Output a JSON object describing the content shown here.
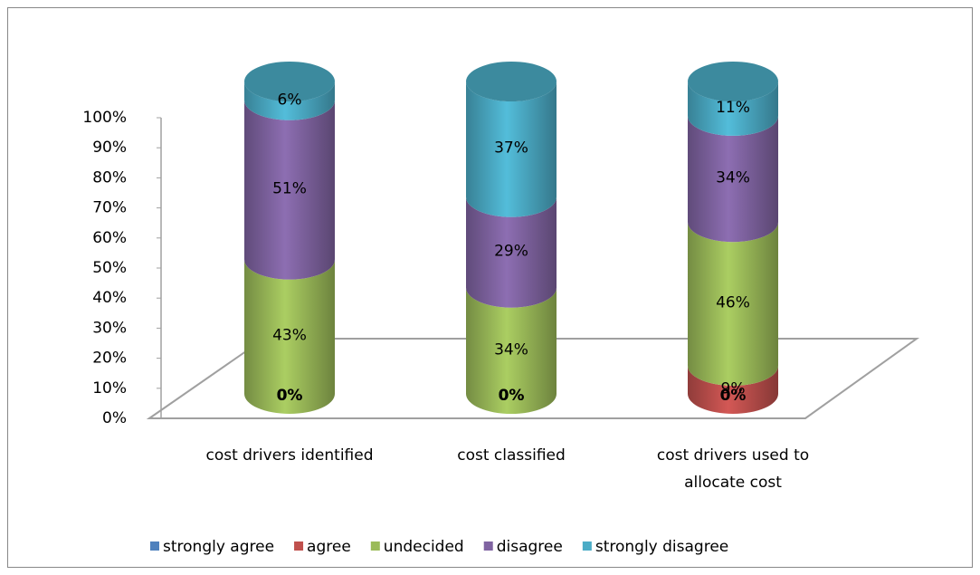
{
  "chart_data": {
    "type": "cylinder_stacked",
    "categories": [
      "cost drivers identified",
      "cost classified",
      "cost drivers used to allocate cost"
    ],
    "series": [
      {
        "name": "strongly agree",
        "color": "#4f81bd",
        "values": [
          0,
          0,
          0
        ],
        "value_labels": [
          "0%",
          "0%",
          "0%"
        ]
      },
      {
        "name": "agree",
        "color": "#c0504d",
        "values": [
          0,
          0,
          9
        ],
        "value_labels": [
          "0%",
          "0%",
          "9%"
        ]
      },
      {
        "name": "undecided",
        "color": "#9bbb59",
        "values": [
          43,
          34,
          46
        ],
        "value_labels": [
          "43%",
          "34%",
          "46%"
        ]
      },
      {
        "name": "disagree",
        "color": "#8064a2",
        "values": [
          51,
          29,
          34
        ],
        "value_labels": [
          "51%",
          "29%",
          "34%"
        ]
      },
      {
        "name": "strongly disagree",
        "color": "#4bacc6",
        "values": [
          6,
          37,
          11
        ],
        "value_labels": [
          "6%",
          "37%",
          "11%"
        ]
      }
    ],
    "ylim": [
      0,
      100
    ],
    "yticks": [
      {
        "value": 0,
        "label": "0%"
      },
      {
        "value": 10,
        "label": "10%"
      },
      {
        "value": 20,
        "label": "20%"
      },
      {
        "value": 30,
        "label": "30%"
      },
      {
        "value": 40,
        "label": "40%"
      },
      {
        "value": 50,
        "label": "50%"
      },
      {
        "value": 60,
        "label": "60%"
      },
      {
        "value": 70,
        "label": "70%"
      },
      {
        "value": 80,
        "label": "80%"
      },
      {
        "value": 90,
        "label": "90%"
      },
      {
        "value": 100,
        "label": "100%"
      }
    ],
    "legend": "bottom"
  }
}
